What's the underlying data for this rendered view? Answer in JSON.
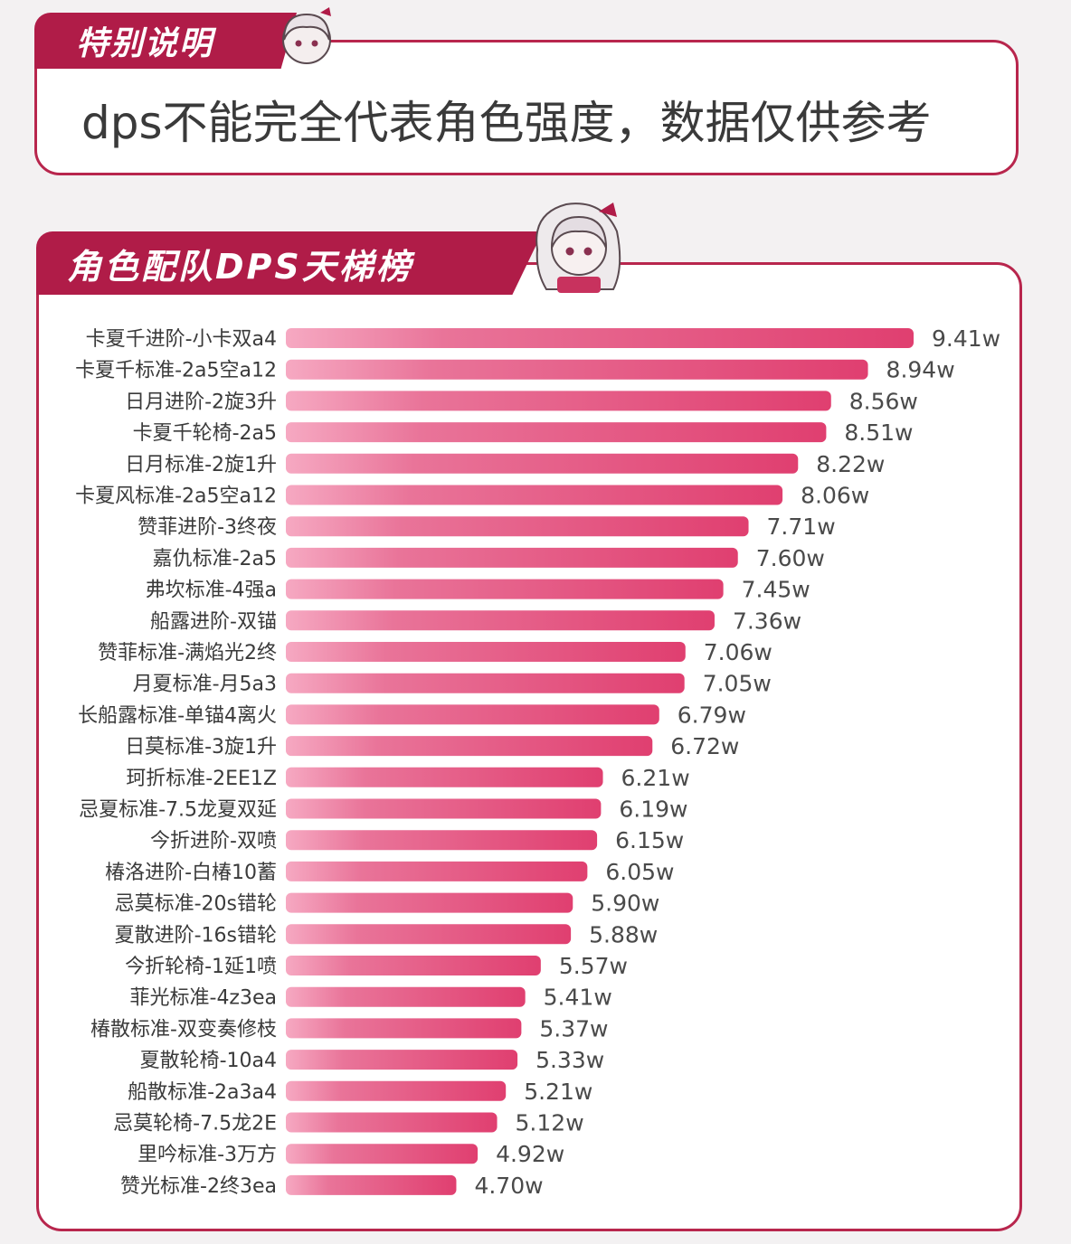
{
  "note": {
    "heading": "特别说明",
    "text": "dps不能完全代表角色强度，数据仅供参考"
  },
  "chart_heading": "角色配队DPS天梯榜",
  "colors": {
    "accent": "#b01c48",
    "bar": "#e04a78",
    "bar_light": "#f6a9c2"
  },
  "chart_data": {
    "type": "bar",
    "orientation": "horizontal",
    "unit_suffix": "w",
    "categories": [
      "卡夏千进阶-小卡双a4",
      "卡夏千标准-2a5空a12",
      "日月进阶-2旋3升",
      "卡夏千轮椅-2a5",
      "日月标准-2旋1升",
      "卡夏风标准-2a5空a12",
      "赞菲进阶-3终夜",
      "嘉仇标准-2a5",
      "弗坎标准-4强a",
      "船露进阶-双锚",
      "赞菲标准-满焰光2终",
      "月夏标准-月5a3",
      "长船露标准-单锚4离火",
      "日莫标准-3旋1升",
      "珂折标准-2EE1Z",
      "忌夏标准-7.5龙夏双延",
      "今折进阶-双喷",
      "椿洛进阶-白椿10蓄",
      "忌莫标准-20s错轮",
      "夏散进阶-16s错轮",
      "今折轮椅-1延1喷",
      "菲光标准-4z3ea",
      "椿散标准-双变奏修枝",
      "夏散轮椅-10a4",
      "船散标准-2a3a4",
      "忌莫轮椅-7.5龙2E",
      "里吟标准-3万方",
      "赞光标准-2终3ea"
    ],
    "values": [
      9.41,
      8.94,
      8.56,
      8.51,
      8.22,
      8.06,
      7.71,
      7.6,
      7.45,
      7.36,
      7.06,
      7.05,
      6.79,
      6.72,
      6.21,
      6.19,
      6.15,
      6.05,
      5.9,
      5.88,
      5.57,
      5.41,
      5.37,
      5.33,
      5.21,
      5.12,
      4.92,
      4.7
    ],
    "value_labels": [
      "9.41w",
      "8.94w",
      "8.56w",
      "8.51w",
      "8.22w",
      "8.06w",
      "7.71w",
      "7.60w",
      "7.45w",
      "7.36w",
      "7.06w",
      "7.05w",
      "6.79w",
      "6.72w",
      "6.21w",
      "6.19w",
      "6.15w",
      "6.05w",
      "5.90w",
      "5.88w",
      "5.57w",
      "5.41w",
      "5.37w",
      "5.33w",
      "5.21w",
      "5.12w",
      "4.92w",
      "4.70w"
    ],
    "title": "角色配队DPS天梯榜",
    "xlabel": "",
    "ylabel": "",
    "grid": false,
    "legend": false
  }
}
